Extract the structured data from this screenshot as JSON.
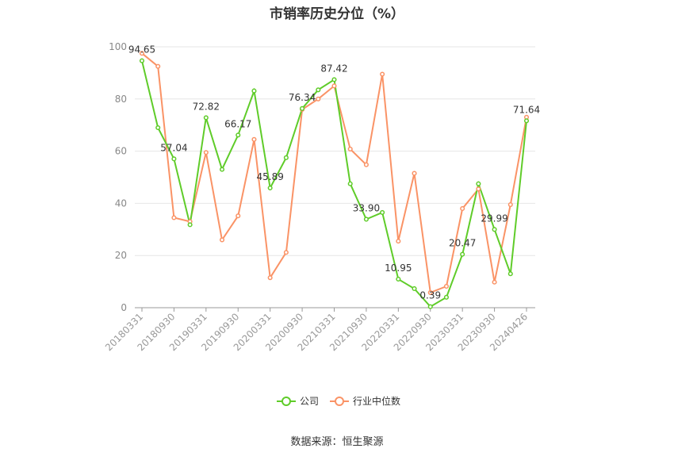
{
  "chart_data": {
    "type": "line",
    "title": "市销率历史分位（%）",
    "source": "数据来源：恒生聚源",
    "ylim": [
      0,
      100
    ],
    "yticks": [
      0,
      20,
      40,
      60,
      80,
      100
    ],
    "grid": "horizontal",
    "legend_position": "bottom",
    "x_ticks": [
      "20180331",
      "20180930",
      "20190331",
      "20190930",
      "20200331",
      "20200930",
      "20210331",
      "20210930",
      "20220331",
      "20220930",
      "20230331",
      "20230930",
      "20240426"
    ],
    "x": [
      "20180331",
      "20180630",
      "20180930",
      "20181231",
      "20190331",
      "20190630",
      "20190930",
      "20191231",
      "20200331",
      "20200630",
      "20200930",
      "20201231",
      "20210331",
      "20210630",
      "20210930",
      "20211231",
      "20220331",
      "20220630",
      "20220930",
      "20221231",
      "20230331",
      "20230630",
      "20230930",
      "20231231",
      "20240426"
    ],
    "series": [
      {
        "name": "公司",
        "color": "#5fcc29",
        "values": [
          94.65,
          69.0,
          57.04,
          31.8,
          72.82,
          53.0,
          66.17,
          83.1,
          45.89,
          57.5,
          76.34,
          83.5,
          87.42,
          47.5,
          33.9,
          36.5,
          10.95,
          7.3,
          0.39,
          4.0,
          20.47,
          47.5,
          29.99,
          13.0,
          71.64
        ],
        "labels": {
          "0": "94.65",
          "2": "57.04",
          "4": "72.82",
          "6": "66.17",
          "8": "45.89",
          "10": "76.34",
          "12": "87.42",
          "14": "33.90",
          "16": "10.95",
          "18": "0.39",
          "20": "20.47",
          "22": "29.99",
          "24": "71.64"
        }
      },
      {
        "name": "行业中位数",
        "color": "#fa9366",
        "values": [
          97.5,
          92.5,
          34.5,
          33.0,
          59.5,
          26.0,
          35.2,
          64.5,
          11.5,
          21.2,
          76.0,
          80.0,
          85.0,
          60.8,
          54.8,
          89.5,
          25.5,
          51.5,
          5.8,
          8.2,
          38.0,
          45.5,
          9.8,
          39.5,
          73.0
        ]
      }
    ]
  }
}
